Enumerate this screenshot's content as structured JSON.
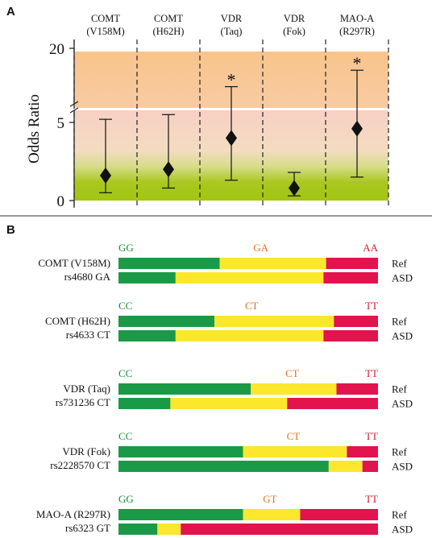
{
  "colors": {
    "homozygous_major": "#1a9a47",
    "heterozygous": "#fbe72c",
    "homozygous_minor": "#e2134d",
    "label_major": "#1f8a3a",
    "label_het": "#e8731b",
    "label_minor": "#cf1f2e",
    "band_top": "#f9c792",
    "band_mid": "#f8d3c2",
    "band_bottom": "#a6c918"
  },
  "chart_data": [
    {
      "panel": "A",
      "type": "scatter",
      "ylabel": "Odds Ratio",
      "yticks_lower": [
        "0",
        "5"
      ],
      "yticks_upper": [
        "20"
      ],
      "ylim_lower": [
        0,
        5.8
      ],
      "ylim_upper": [
        15,
        20
      ],
      "axis_break": true,
      "categories": [
        {
          "line1": "COMT",
          "line2": "(V158M)"
        },
        {
          "line1": "COMT",
          "line2": "(H62H)"
        },
        {
          "line1": "VDR",
          "line2": "(Taq)"
        },
        {
          "line1": "VDR",
          "line2": "(Fok)"
        },
        {
          "line1": "MAO-A",
          "line2": "(R297R)"
        }
      ],
      "points": [
        {
          "or": 1.6,
          "ci_low": 0.5,
          "ci_high": 5.2,
          "significant": false
        },
        {
          "or": 2.0,
          "ci_low": 0.8,
          "ci_high": 5.5,
          "significant": false
        },
        {
          "or": 4.0,
          "ci_low": 1.3,
          "ci_high": 16.5,
          "significant": true
        },
        {
          "or": 0.8,
          "ci_low": 0.3,
          "ci_high": 1.8,
          "significant": false
        },
        {
          "or": 4.6,
          "ci_low": 1.5,
          "ci_high": 18.0,
          "significant": true
        }
      ],
      "significance_marker": "*"
    },
    {
      "panel": "B",
      "type": "bar",
      "stacked": true,
      "percent": true,
      "row_labels": [
        "Ref",
        "ASD"
      ],
      "groups": [
        {
          "gene": "COMT (V158M)",
          "snp": "rs4680 GA",
          "genotypes": [
            "GG",
            "GA",
            "AA"
          ],
          "ref": [
            39,
            41,
            20
          ],
          "asd": [
            22,
            57,
            21
          ]
        },
        {
          "gene": "COMT (H62H)",
          "snp": "rs4633 CT",
          "genotypes": [
            "CC",
            "CT",
            "TT"
          ],
          "ref": [
            37,
            46,
            17
          ],
          "asd": [
            22,
            57,
            21
          ]
        },
        {
          "gene": "VDR (Taq)",
          "snp": "rs731236 CT",
          "genotypes": [
            "CC",
            "CT",
            "TT"
          ],
          "ref": [
            51,
            33,
            16
          ],
          "asd": [
            20,
            45,
            35
          ]
        },
        {
          "gene": "VDR (Fok)",
          "snp": "rs2228570 CT",
          "genotypes": [
            "CC",
            "CT",
            "TT"
          ],
          "ref": [
            48,
            40,
            12
          ],
          "asd": [
            81,
            13,
            6
          ]
        },
        {
          "gene": "MAO-A (R297R)",
          "snp": "rs6323 GT",
          "genotypes": [
            "GG",
            "GT",
            "TT"
          ],
          "ref": [
            48,
            22,
            30
          ],
          "asd": [
            15,
            9,
            76
          ]
        }
      ]
    }
  ]
}
